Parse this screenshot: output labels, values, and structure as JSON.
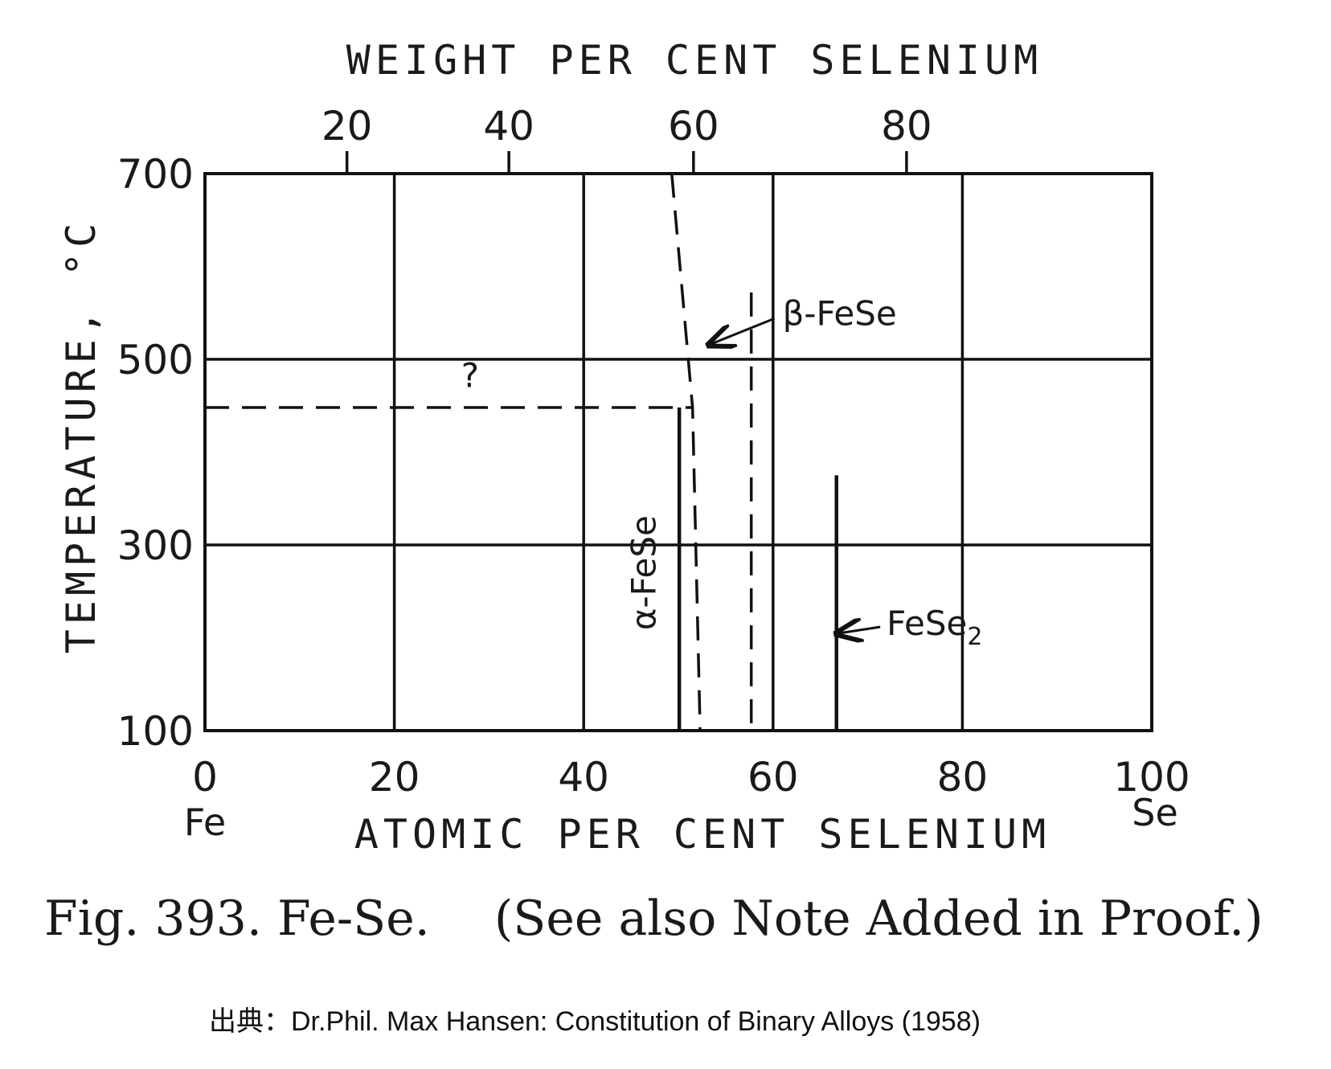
{
  "chart_data": {
    "type": "line",
    "title": "",
    "xlabel": "ATOMIC PER CENT SELENIUM",
    "x2label": "WEIGHT PER CENT SELENIUM",
    "ylabel": "TEMPERATURE, °C",
    "xlim": [
      0,
      100
    ],
    "ylim": [
      100,
      700
    ],
    "x_ticks": [
      "0",
      "20",
      "40",
      "60",
      "80",
      "100"
    ],
    "x2_ticks": [
      {
        "label": "20",
        "at_percent": 15.0
      },
      {
        "label": "40",
        "at_percent": 32.1
      },
      {
        "label": "60",
        "at_percent": 51.6
      },
      {
        "label": "80",
        "at_percent": 74.1
      }
    ],
    "y_ticks": [
      "100",
      "300",
      "500",
      "700"
    ],
    "element_labels": {
      "left": "Fe",
      "right": "Se"
    },
    "grid": true,
    "lines": [
      {
        "label": "?",
        "style": "dashed",
        "points": [
          [
            0,
            448
          ],
          [
            51.5,
            448
          ]
        ]
      },
      {
        "style": "dashed",
        "points": [
          [
            49.3,
            700
          ],
          [
            51.5,
            448
          ],
          [
            52.3,
            100
          ]
        ]
      },
      {
        "style": "dashed",
        "points": [
          [
            57.7,
            572
          ],
          [
            57.7,
            100
          ]
        ]
      },
      {
        "style": "solid",
        "points": [
          [
            50.1,
            448
          ],
          [
            50.1,
            100
          ]
        ]
      },
      {
        "style": "solid",
        "points": [
          [
            66.7,
            375
          ],
          [
            66.7,
            100
          ]
        ]
      }
    ],
    "annotations": [
      {
        "text": "β-FeSe",
        "x": 61,
        "y": 537
      },
      {
        "text": "α-FeSe",
        "x": 47.6,
        "y": 270
      },
      {
        "text": "FeSe2",
        "x": 72,
        "y": 203
      },
      {
        "text": "?",
        "x": 28,
        "y": 470
      }
    ]
  },
  "caption": {
    "figure": "Fig. 393. Fe-Se.",
    "note": "(See also Note Added in Proof.)"
  },
  "source": "出典：Dr.Phil. Max Hansen: Constitution of Binary Alloys (1958)"
}
